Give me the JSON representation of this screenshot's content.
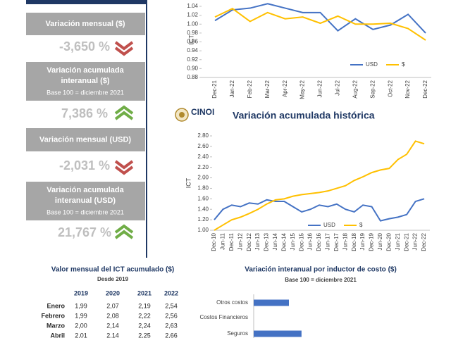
{
  "kpis": [
    {
      "label_lines": [
        "Variación mensual ($)"
      ],
      "value": "-3,650 %"
    },
    {
      "label_lines": [
        "Variación acumulada",
        "interanual ($)"
      ],
      "note": "Base 100 = diciembre 2021",
      "value": "7,386 %"
    },
    {
      "label_lines": [
        "Variación mensual (USD)"
      ],
      "value": "-2,031 %"
    },
    {
      "label_lines": [
        "Variación acumulada",
        "interanual (USD)"
      ],
      "note": "Base 100 = diciembre 2021",
      "value": "21,767 %"
    }
  ],
  "logo": "CINOI",
  "chart_data": [
    {
      "type": "line",
      "y_label": "ICT",
      "categories": [
        "Dec-21",
        "Jan-22",
        "Feb-22",
        "Mar-22",
        "Apr-22",
        "May-22",
        "Jun-22",
        "Jul-22",
        "Aug-22",
        "Sep-22",
        "Oct-22",
        "Nov-22",
        "Dec-22"
      ],
      "series": [
        {
          "name": "USD",
          "color": "#4472c4",
          "values": [
            1.008,
            1.032,
            1.036,
            1.046,
            1.036,
            1.026,
            1.026,
            0.985,
            1.012,
            0.988,
            0.998,
            1.022,
            0.98
          ]
        },
        {
          "name": "$",
          "color": "#ffc000",
          "values": [
            1.016,
            1.035,
            1.006,
            1.026,
            1.012,
            1.016,
            1.002,
            1.018,
            1.0,
            1.0,
            1.002,
            0.99,
            0.964
          ]
        }
      ],
      "ylim": [
        0.88,
        1.05
      ],
      "yticks": [
        {
          "value": 0.88,
          "label": "0.88"
        },
        {
          "value": 0.9,
          "label": "0.90"
        },
        {
          "value": 0.92,
          "label": "0.92"
        },
        {
          "value": 0.94,
          "label": "0.94"
        },
        {
          "value": 0.96,
          "label": "0.96"
        },
        {
          "value": 0.98,
          "label": "0.98"
        },
        {
          "value": 1.0,
          "label": "1.00"
        },
        {
          "value": 1.02,
          "label": "1.02"
        },
        {
          "value": 1.04,
          "label": "1.04"
        }
      ],
      "legend": "bottom-right"
    },
    {
      "type": "line",
      "title": "Variación acumulada histórica",
      "y_label": "ICT",
      "categories": [
        "Dec-10",
        "Jun-11",
        "Dec-11",
        "Jun-12",
        "Dec-12",
        "Jun-13",
        "Dec-13",
        "Jun-14",
        "Dec-14",
        "Jun-15",
        "Dec-15",
        "Jun-16",
        "Dec-16",
        "Jun-17",
        "Dec-17",
        "Jun-18",
        "Dec-18",
        "Jun-19",
        "Dec-19",
        "Jun-20",
        "Dec-20",
        "Jun-21",
        "Dec-21",
        "Jun-22",
        "Dec-22"
      ],
      "series": [
        {
          "name": "USD",
          "color": "#4472c4",
          "values": [
            1.2,
            1.4,
            1.48,
            1.45,
            1.52,
            1.5,
            1.58,
            1.55,
            1.55,
            1.45,
            1.35,
            1.4,
            1.48,
            1.45,
            1.5,
            1.4,
            1.35,
            1.48,
            1.45,
            1.18,
            1.22,
            1.25,
            1.3,
            1.55,
            1.6
          ]
        },
        {
          "name": "$",
          "color": "#ffc000",
          "values": [
            1.0,
            1.1,
            1.2,
            1.25,
            1.32,
            1.4,
            1.5,
            1.58,
            1.6,
            1.65,
            1.68,
            1.7,
            1.72,
            1.75,
            1.8,
            1.85,
            1.95,
            2.02,
            2.1,
            2.15,
            2.18,
            2.35,
            2.45,
            2.7,
            2.65
          ]
        }
      ],
      "ylim": [
        1.0,
        2.8
      ],
      "yticks": [
        {
          "value": 1.0,
          "label": "1.00"
        },
        {
          "value": 1.2,
          "label": "1.20"
        },
        {
          "value": 1.4,
          "label": "1.40"
        },
        {
          "value": 1.6,
          "label": "1.60"
        },
        {
          "value": 1.8,
          "label": "1.80"
        },
        {
          "value": 2.0,
          "label": "2.00"
        },
        {
          "value": 2.2,
          "label": "2.20"
        },
        {
          "value": 2.4,
          "label": "2.40"
        },
        {
          "value": 2.6,
          "label": "2.60"
        },
        {
          "value": 2.8,
          "label": "2.80"
        }
      ],
      "legend": "bottom"
    },
    {
      "type": "hbar",
      "title": "Variación interanual por inductor de costo ($)",
      "subtitle": "Base 100 = diciembre 2021",
      "categories": [
        "Otros costos",
        "Costos Financieros",
        "Seguros"
      ],
      "values": [
        7,
        0,
        9.5
      ],
      "color": "#4472c4",
      "xlim": [
        0,
        35
      ]
    }
  ],
  "table": {
    "title": "Valor mensual del ICT acumulado ($)",
    "subtitle": "Desde 2019",
    "columns": [
      "2019",
      "2020",
      "2021",
      "2022"
    ],
    "rows": [
      [
        "Enero",
        "1,99",
        "2,07",
        "2,19",
        "2,54"
      ],
      [
        "Febrero",
        "1,99",
        "2,08",
        "2,22",
        "2,56"
      ],
      [
        "Marzo",
        "2,00",
        "2,14",
        "2,24",
        "2,63"
      ],
      [
        "Abril",
        "2,01",
        "2,14",
        "2,25",
        "2,66"
      ]
    ]
  }
}
